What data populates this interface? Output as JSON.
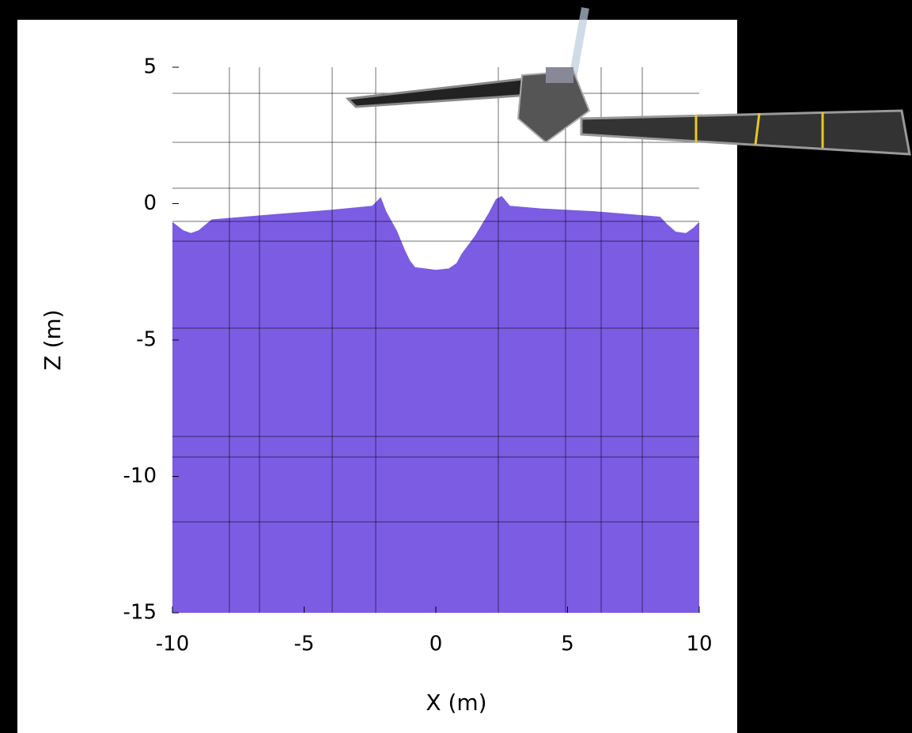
{
  "chart_data": {
    "type": "area",
    "xlabel": "X (m)",
    "ylabel": "Z (m)",
    "color": "#7b5ce3",
    "x": [
      -10,
      -9.6,
      -9.3,
      -9,
      -8.5,
      -6,
      -4,
      -2.4,
      -2.1,
      -1.9,
      -1.5,
      -1.2,
      -1,
      -0.8,
      -0.4,
      0,
      0.5,
      0.8,
      1,
      1.5,
      2,
      2.3,
      2.5,
      2.8,
      4,
      6,
      8.5,
      8.8,
      9.1,
      9.5,
      9.8,
      10
    ],
    "values": [
      -0.7,
      -1,
      -1.1,
      -1,
      -0.6,
      -0.4,
      -0.25,
      -0.1,
      0.2,
      -0.3,
      -1,
      -1.7,
      -2.1,
      -2.35,
      -2.4,
      -2.45,
      -2.4,
      -2.2,
      -1.85,
      -1.2,
      -0.4,
      0.15,
      0.25,
      -0.1,
      -0.2,
      -0.3,
      -0.5,
      -0.8,
      -1.05,
      -1.1,
      -0.9,
      -0.7
    ],
    "xlim": [
      -10,
      10
    ],
    "ylim": [
      -15,
      5
    ],
    "xticks": [
      -10,
      -5,
      0,
      5,
      10
    ],
    "yticks": [
      -15,
      -10,
      -5,
      0,
      5
    ]
  }
}
